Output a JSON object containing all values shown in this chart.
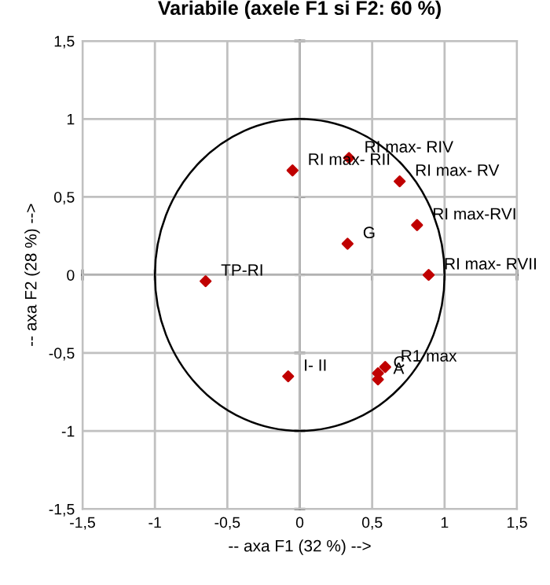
{
  "chart_data": {
    "type": "scatter",
    "title": "Variabile (axele F1 si F2: 60 %)",
    "xlabel": "-- axa F1 (32 %) -->",
    "ylabel": "-- axa F2 (28 %) -->",
    "series": [
      {
        "color": "#c00000",
        "marker": "diamond",
        "x": [
          0.34,
          -0.05,
          0.69,
          0.81,
          0.33,
          0.89,
          -0.65,
          -0.08,
          0.59,
          0.54,
          0.54
        ],
        "values": [
          0.75,
          0.67,
          0.6,
          0.32,
          0.2,
          0.0,
          -0.04,
          -0.65,
          -0.59,
          -0.63,
          -0.67
        ]
      }
    ],
    "annotations": [
      {
        "text": "RI max- RIV",
        "x": 0.34,
        "y": 0.75
      },
      {
        "text": "RI max- RII",
        "x": -0.05,
        "y": 0.67
      },
      {
        "text": "RI max- RV",
        "x": 0.69,
        "y": 0.6
      },
      {
        "text": "RI max-RVI",
        "x": 0.81,
        "y": 0.32
      },
      {
        "text": "G",
        "x": 0.33,
        "y": 0.2
      },
      {
        "text": "RI max- RVII",
        "x": 0.89,
        "y": 0.0
      },
      {
        "text": "TP-RI",
        "x": -0.65,
        "y": -0.04
      },
      {
        "text": "I- II",
        "x": -0.08,
        "y": -0.65
      },
      {
        "text": "R1 max",
        "x": 0.59,
        "y": -0.59
      },
      {
        "text": "C",
        "x": 0.54,
        "y": -0.63
      },
      {
        "text": "A",
        "x": 0.54,
        "y": -0.67
      }
    ],
    "xlim": [
      -1.5,
      1.5
    ],
    "ylim": [
      -1.5,
      1.5
    ],
    "xticks": [
      {
        "value": -1.5,
        "label": "-1,5"
      },
      {
        "value": -1,
        "label": "-1"
      },
      {
        "value": -0.5,
        "label": "-0,5"
      },
      {
        "value": 0,
        "label": "0"
      },
      {
        "value": 0.5,
        "label": "0,5"
      },
      {
        "value": 1,
        "label": "1"
      },
      {
        "value": 1.5,
        "label": "1,5"
      }
    ],
    "yticks": [
      {
        "value": -1.5,
        "label": "-1,5"
      },
      {
        "value": -1,
        "label": "-1"
      },
      {
        "value": -0.5,
        "label": "-0,5"
      },
      {
        "value": 0,
        "label": "0"
      },
      {
        "value": 0.5,
        "label": "0,5"
      },
      {
        "value": 1,
        "label": "1"
      },
      {
        "value": 1.5,
        "label": "1,5"
      }
    ],
    "grid": true
  }
}
